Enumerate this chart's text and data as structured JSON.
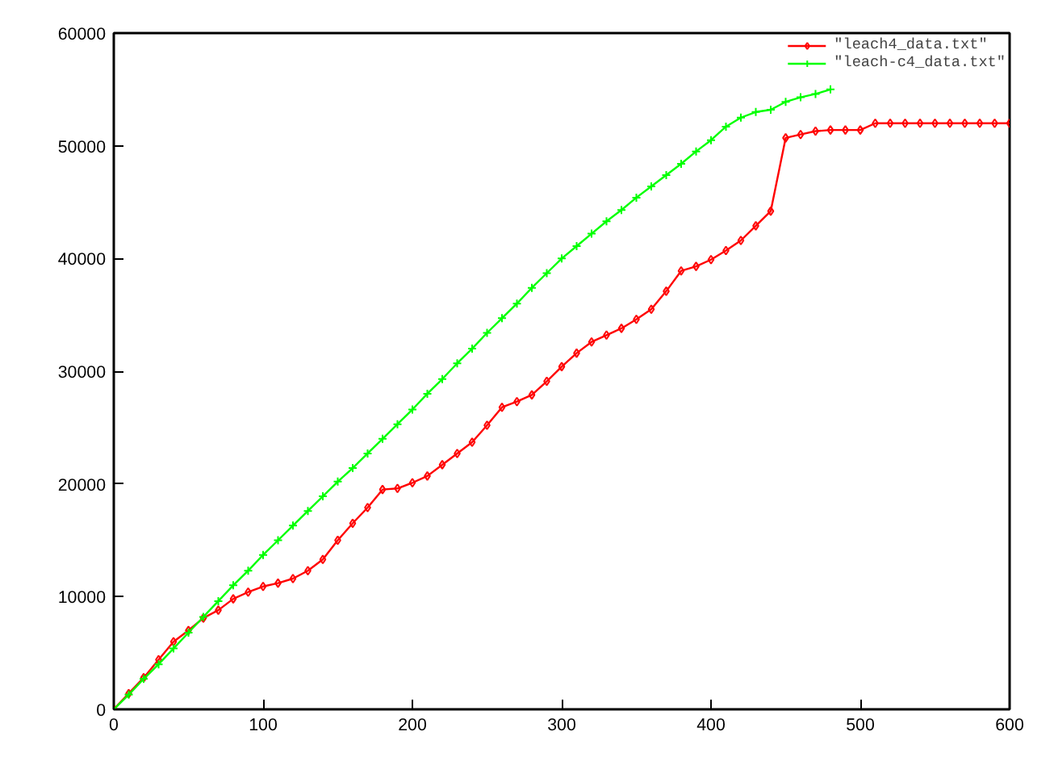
{
  "chart_data": {
    "type": "line",
    "x": [
      0,
      10,
      20,
      30,
      40,
      50,
      60,
      70,
      80,
      90,
      100,
      110,
      120,
      130,
      140,
      150,
      160,
      170,
      180,
      190,
      200,
      210,
      220,
      230,
      240,
      250,
      260,
      270,
      280,
      290,
      300,
      310,
      320,
      330,
      340,
      350,
      360,
      370,
      380,
      390,
      400,
      410,
      420,
      430,
      440,
      450,
      460,
      470,
      480,
      490,
      500,
      510,
      520,
      530,
      540,
      550,
      560,
      570,
      580,
      590,
      600
    ],
    "series": [
      {
        "name": "\"leach4_data.txt\"",
        "color": "#ff0000",
        "marker": "diamond",
        "values": [
          0,
          1400,
          2800,
          4400,
          6000,
          7000,
          8100,
          8800,
          9800,
          10400,
          10900,
          11200,
          11600,
          12300,
          13300,
          15000,
          16500,
          17900,
          19500,
          19600,
          20100,
          20700,
          21700,
          22700,
          23700,
          25200,
          26800,
          27300,
          27900,
          29100,
          30400,
          31600,
          32600,
          33200,
          33800,
          34600,
          35500,
          37100,
          38900,
          39300,
          39900,
          40700,
          41600,
          42900,
          44200,
          50700,
          51000,
          51300,
          51400,
          51400,
          51400,
          52000,
          52000,
          52000,
          52000,
          52000,
          52000,
          52000,
          52000,
          52000,
          52000
        ]
      },
      {
        "name": "\"leach-c4_data.txt\"",
        "color": "#00ff00",
        "marker": "cross",
        "values": [
          0,
          1300,
          2700,
          4000,
          5400,
          6800,
          8200,
          9600,
          11000,
          12300,
          13700,
          15000,
          16300,
          17600,
          18900,
          20200,
          21400,
          22700,
          24000,
          25300,
          26600,
          28000,
          29300,
          30700,
          32000,
          33400,
          34700,
          36000,
          37400,
          38700,
          40000,
          41100,
          42200,
          43300,
          44300,
          45400,
          46400,
          47400,
          48400,
          49500,
          50500,
          51700,
          52500,
          53000,
          53200,
          53900,
          54300,
          54600,
          55000,
          null,
          null,
          null,
          null,
          null,
          null,
          null,
          null,
          null,
          null,
          null,
          null
        ]
      }
    ],
    "xlim": [
      0,
      600
    ],
    "ylim": [
      0,
      60000
    ],
    "xticks": [
      0,
      100,
      200,
      300,
      400,
      500,
      600
    ],
    "yticks": [
      0,
      10000,
      20000,
      30000,
      40000,
      50000,
      60000
    ],
    "grid": false,
    "legend": "top right",
    "line_style": "solid"
  }
}
